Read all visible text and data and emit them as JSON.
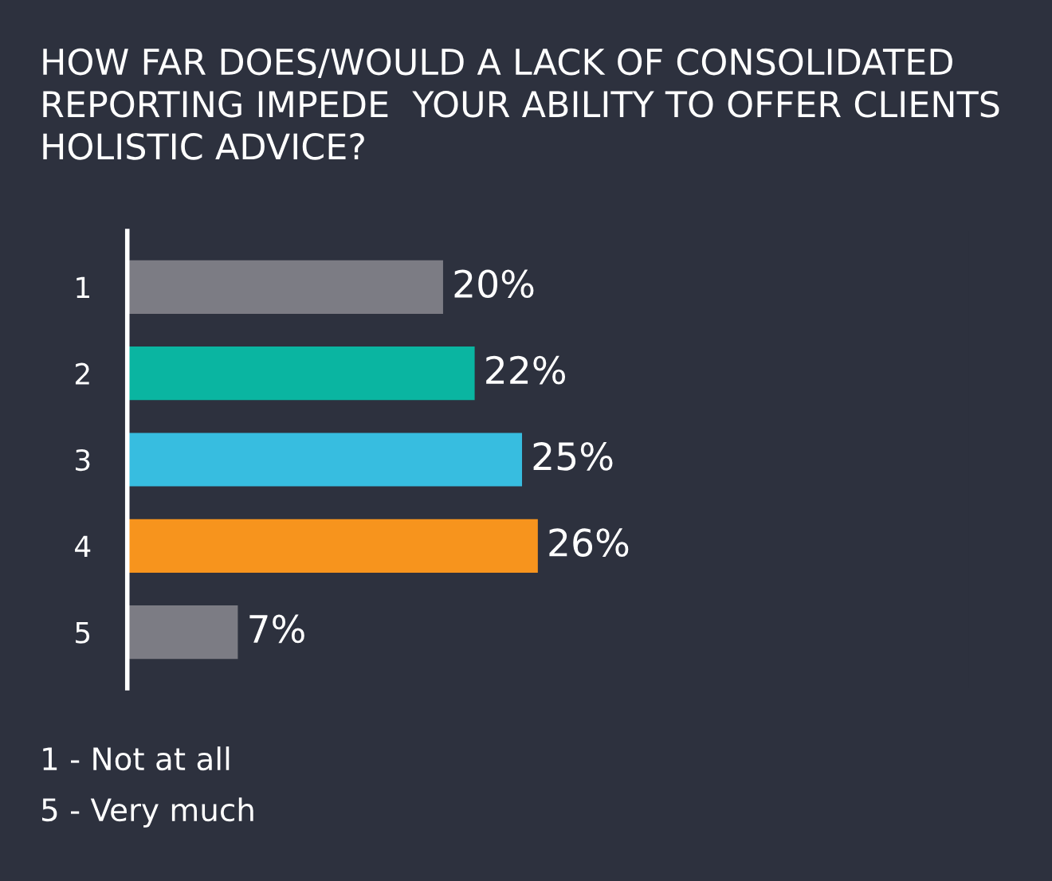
{
  "chart_data": {
    "type": "bar",
    "orientation": "horizontal",
    "title": "HOW FAR DOES/WOULD A LACK OF CONSOLIDATED REPORTING IMPEDE  YOUR ABILITY TO OFFER CLIENTS HOLISTIC ADVICE?",
    "categories": [
      "1",
      "2",
      "3",
      "4",
      "5"
    ],
    "values": [
      20,
      22,
      25,
      26,
      7
    ],
    "colors": [
      "#7c7c84",
      "#0ab5a1",
      "#37bde0",
      "#f7941d",
      "#7c7c84"
    ],
    "value_labels": [
      "20%",
      "22%",
      "25%",
      "26%",
      "7%"
    ],
    "annotations": [
      "1 - Not at all",
      "5 - Very much"
    ],
    "grid": false,
    "legend": false
  }
}
